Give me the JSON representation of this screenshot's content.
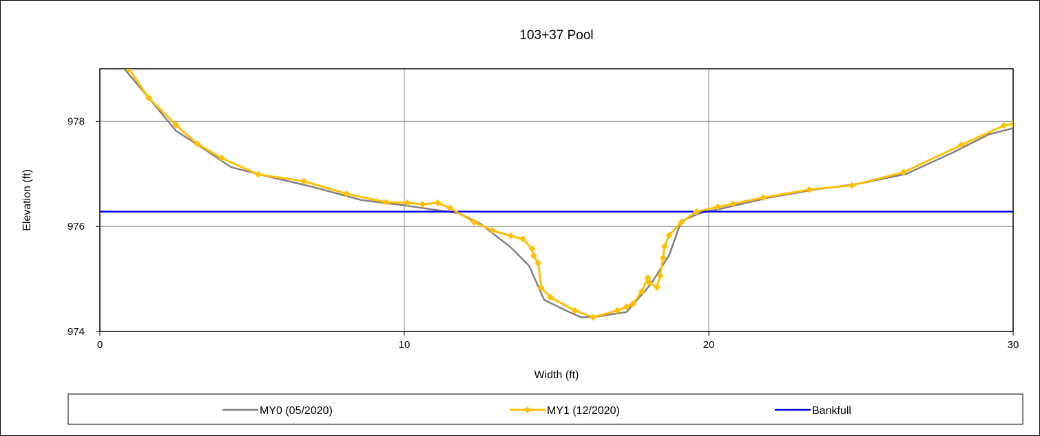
{
  "chart_data": {
    "type": "line",
    "title": "103+37 Pool",
    "xlabel": "Width (ft)",
    "ylabel": "Elevation (ft)",
    "xlim": [
      0,
      30
    ],
    "ylim": [
      974,
      979
    ],
    "x_ticks": [
      0,
      10,
      20,
      30
    ],
    "y_ticks": [
      974,
      976,
      978
    ],
    "grid": true,
    "legend_position": "bottom",
    "series": [
      {
        "name": "MY0 (05/2020)",
        "color": "#808080",
        "marker": "none",
        "points": [
          [
            0,
            979.3
          ],
          [
            0.8,
            979.0
          ],
          [
            1.6,
            978.45
          ],
          [
            2.5,
            977.82
          ],
          [
            3.3,
            977.52
          ],
          [
            4.3,
            977.13
          ],
          [
            5.3,
            976.98
          ],
          [
            7.0,
            976.75
          ],
          [
            8.6,
            976.5
          ],
          [
            10.0,
            976.4
          ],
          [
            11.2,
            976.3
          ],
          [
            11.8,
            976.25
          ],
          [
            12.5,
            976.05
          ],
          [
            13.5,
            975.6
          ],
          [
            14.1,
            975.25
          ],
          [
            14.6,
            974.6
          ],
          [
            15.3,
            974.4
          ],
          [
            15.8,
            974.27
          ],
          [
            16.3,
            974.28
          ],
          [
            17.3,
            974.37
          ],
          [
            18.1,
            974.9
          ],
          [
            18.7,
            975.45
          ],
          [
            19.1,
            976.1
          ],
          [
            19.7,
            976.25
          ],
          [
            20.5,
            976.35
          ],
          [
            22.0,
            976.55
          ],
          [
            23.5,
            976.7
          ],
          [
            25.0,
            976.82
          ],
          [
            26.5,
            977.0
          ],
          [
            28.0,
            977.4
          ],
          [
            29.2,
            977.75
          ],
          [
            30.0,
            977.87
          ]
        ]
      },
      {
        "name": "MY1 (12/2020)",
        "color": "#ffc000",
        "marker": "diamond",
        "points": [
          [
            0,
            979.4
          ],
          [
            0.95,
            979.0
          ],
          [
            1.6,
            978.45
          ],
          [
            2.5,
            977.93
          ],
          [
            3.2,
            977.57
          ],
          [
            4.0,
            977.3
          ],
          [
            5.2,
            976.99
          ],
          [
            6.7,
            976.86
          ],
          [
            8.1,
            976.62
          ],
          [
            9.4,
            976.46
          ],
          [
            10.1,
            976.45
          ],
          [
            10.6,
            976.42
          ],
          [
            11.1,
            976.45
          ],
          [
            11.5,
            976.35
          ],
          [
            12.3,
            976.08
          ],
          [
            12.9,
            975.92
          ],
          [
            13.5,
            975.82
          ],
          [
            13.9,
            975.76
          ],
          [
            14.2,
            975.57
          ],
          [
            14.25,
            975.44
          ],
          [
            14.4,
            975.3
          ],
          [
            14.5,
            974.83
          ],
          [
            14.8,
            974.65
          ],
          [
            15.6,
            974.4
          ],
          [
            16.2,
            974.27
          ],
          [
            17.0,
            974.4
          ],
          [
            17.3,
            974.47
          ],
          [
            17.5,
            974.52
          ],
          [
            17.8,
            974.76
          ],
          [
            18.0,
            975.02
          ],
          [
            18.05,
            974.93
          ],
          [
            18.3,
            974.84
          ],
          [
            18.4,
            975.06
          ],
          [
            18.5,
            975.4
          ],
          [
            18.55,
            975.62
          ],
          [
            18.7,
            975.83
          ],
          [
            19.1,
            976.08
          ],
          [
            19.6,
            976.28
          ],
          [
            20.3,
            976.37
          ],
          [
            20.8,
            976.43
          ],
          [
            21.8,
            976.55
          ],
          [
            23.3,
            976.7
          ],
          [
            24.7,
            976.78
          ],
          [
            26.4,
            977.03
          ],
          [
            28.3,
            977.55
          ],
          [
            29.7,
            977.92
          ],
          [
            30.0,
            977.95
          ]
        ]
      },
      {
        "name": "Bankfull",
        "color": "#0000ff",
        "marker": "none",
        "points": [
          [
            0,
            976.28
          ],
          [
            30,
            976.28
          ]
        ]
      }
    ]
  }
}
